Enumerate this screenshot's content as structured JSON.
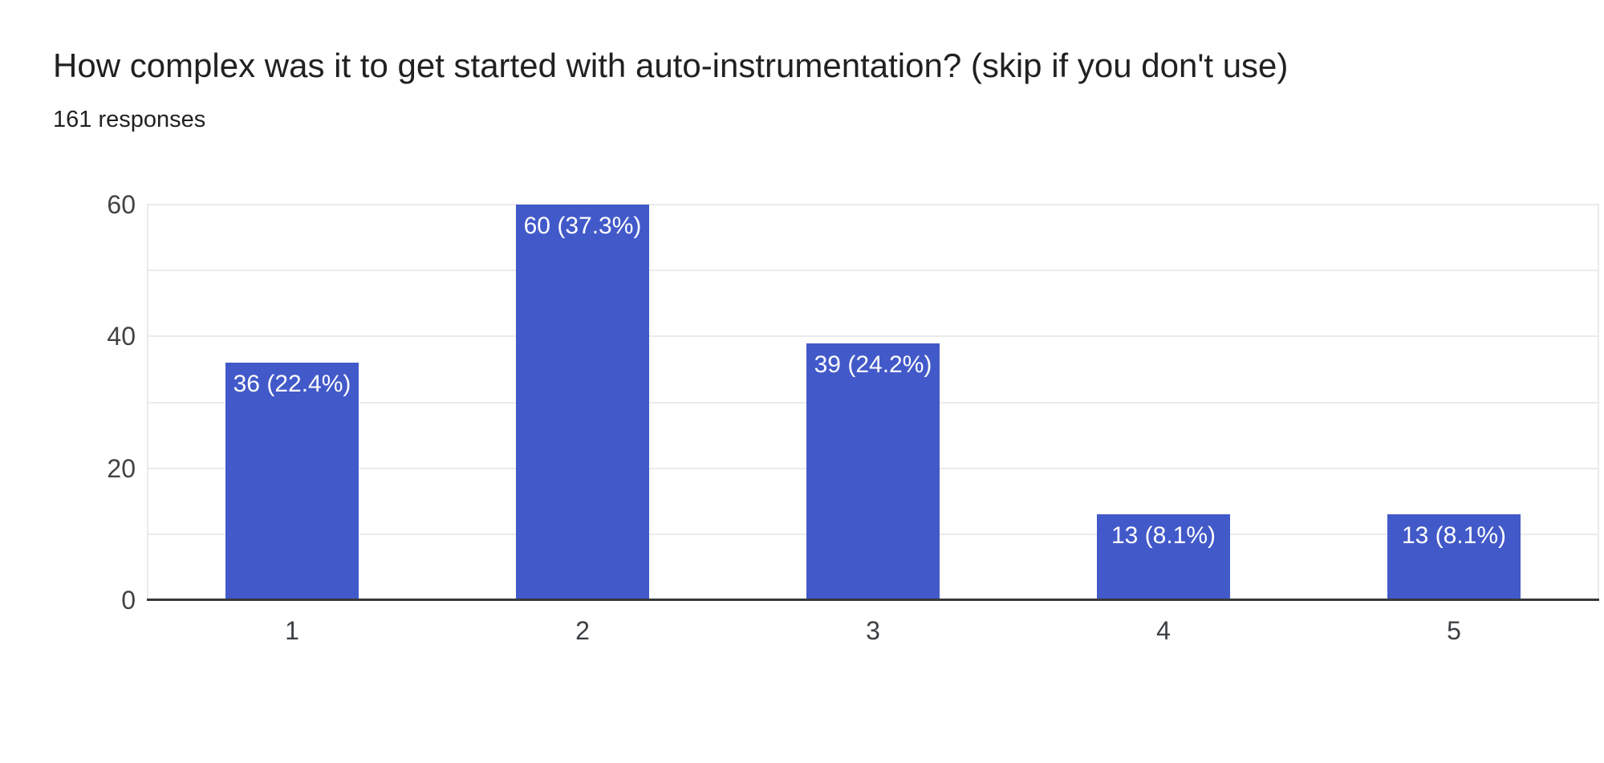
{
  "chart_data": {
    "type": "bar",
    "title": "How complex was it to get started with auto-instrumentation? (skip if you don't use)",
    "subtitle": "161 responses",
    "categories": [
      "1",
      "2",
      "3",
      "4",
      "5"
    ],
    "values": [
      36,
      60,
      39,
      13,
      13
    ],
    "bar_labels": [
      "36 (22.4%)",
      "60 (37.3%)",
      "39 (24.2%)",
      "13 (8.1%)",
      "13 (8.1%)"
    ],
    "xlabel": "",
    "ylabel": "",
    "ylim": [
      0,
      60
    ],
    "yticks": [
      0,
      20,
      40,
      60
    ],
    "gridline_step": 10,
    "grid": true,
    "legend_position": "none",
    "colors": {
      "bar": "#4259c9",
      "bar_label": "#ffffff",
      "gridline": "#ebebeb",
      "axis_line": "#37393b",
      "y_tick_label": "#424242",
      "x_tick_label": "#3c4043",
      "title": "#212121",
      "subtitle": "#212121"
    }
  }
}
